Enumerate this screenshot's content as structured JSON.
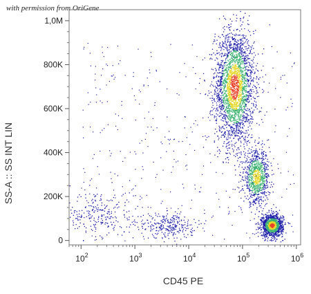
{
  "watermark": "with permission from OriGene",
  "chart_data": {
    "type": "scatter",
    "plot_style": "flow-cytometry density dot plot",
    "xlabel": "CD45 PE",
    "ylabel": "SS-A :: SS INT LIN",
    "x_scale": "log",
    "xlim": [
      60,
      1200000
    ],
    "ylim": [
      -20000,
      1050000
    ],
    "x_ticks": [
      100,
      1000,
      10000,
      100000,
      1000000
    ],
    "x_tick_labels": [
      "10",
      "10",
      "10",
      "10",
      "10"
    ],
    "x_tick_exponents": [
      "2",
      "3",
      "4",
      "5",
      "6"
    ],
    "y_ticks": [
      0,
      200000,
      400000,
      600000,
      800000,
      1000000
    ],
    "y_tick_labels": [
      "0",
      "200K",
      "400K",
      "600K",
      "800K",
      "1,0M"
    ],
    "density_colors": [
      "#1a1aa8",
      "#3cb371",
      "#e6d72a",
      "#e8432a"
    ],
    "populations": [
      {
        "x_center": 70000,
        "y_center": 700000,
        "x_spread_decades": 0.18,
        "y_spread": 130000,
        "density": "high"
      },
      {
        "x_center": 180000,
        "y_center": 290000,
        "x_spread_decades": 0.12,
        "y_spread": 60000,
        "density": "medium"
      },
      {
        "x_center": 350000,
        "y_center": 70000,
        "x_spread_decades": 0.1,
        "y_spread": 25000,
        "density": "very high"
      },
      {
        "x_center": 200,
        "y_center": 120000,
        "x_spread_decades": 0.35,
        "y_spread": 60000,
        "density": "low"
      },
      {
        "x_center": 4000,
        "y_center": 70000,
        "x_spread_decades": 0.25,
        "y_spread": 30000,
        "density": "low"
      }
    ]
  }
}
